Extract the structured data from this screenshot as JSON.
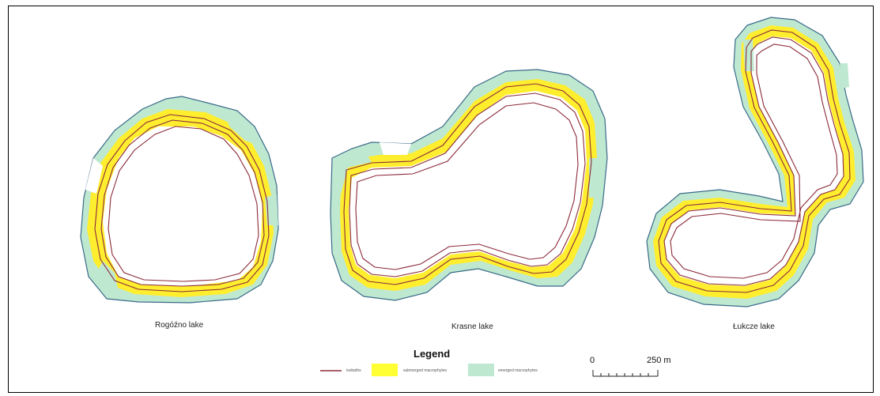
{
  "lakes": [
    {
      "name": "Rogóźno lake"
    },
    {
      "name": "Krasne lake"
    },
    {
      "name": "Łukcze lake"
    }
  ],
  "legend": {
    "title": "Legend",
    "items": [
      {
        "label": "isobaths",
        "color": "#8b2a3a",
        "icon": "line-swatch"
      },
      {
        "label": "submerged macrophytes",
        "color": "#ffff33",
        "icon": "fill-swatch"
      },
      {
        "label": "emerged macrophytes",
        "color": "#bfe8d0",
        "icon": "fill-swatch"
      }
    ]
  },
  "scale_bar": {
    "start_label": "0",
    "end_label": "250 m"
  },
  "colors": {
    "outline": "#3a6a8a",
    "emerged": "#bfe8d0",
    "submerged": "#ffee2e",
    "isobath": "#8b2a3a"
  }
}
